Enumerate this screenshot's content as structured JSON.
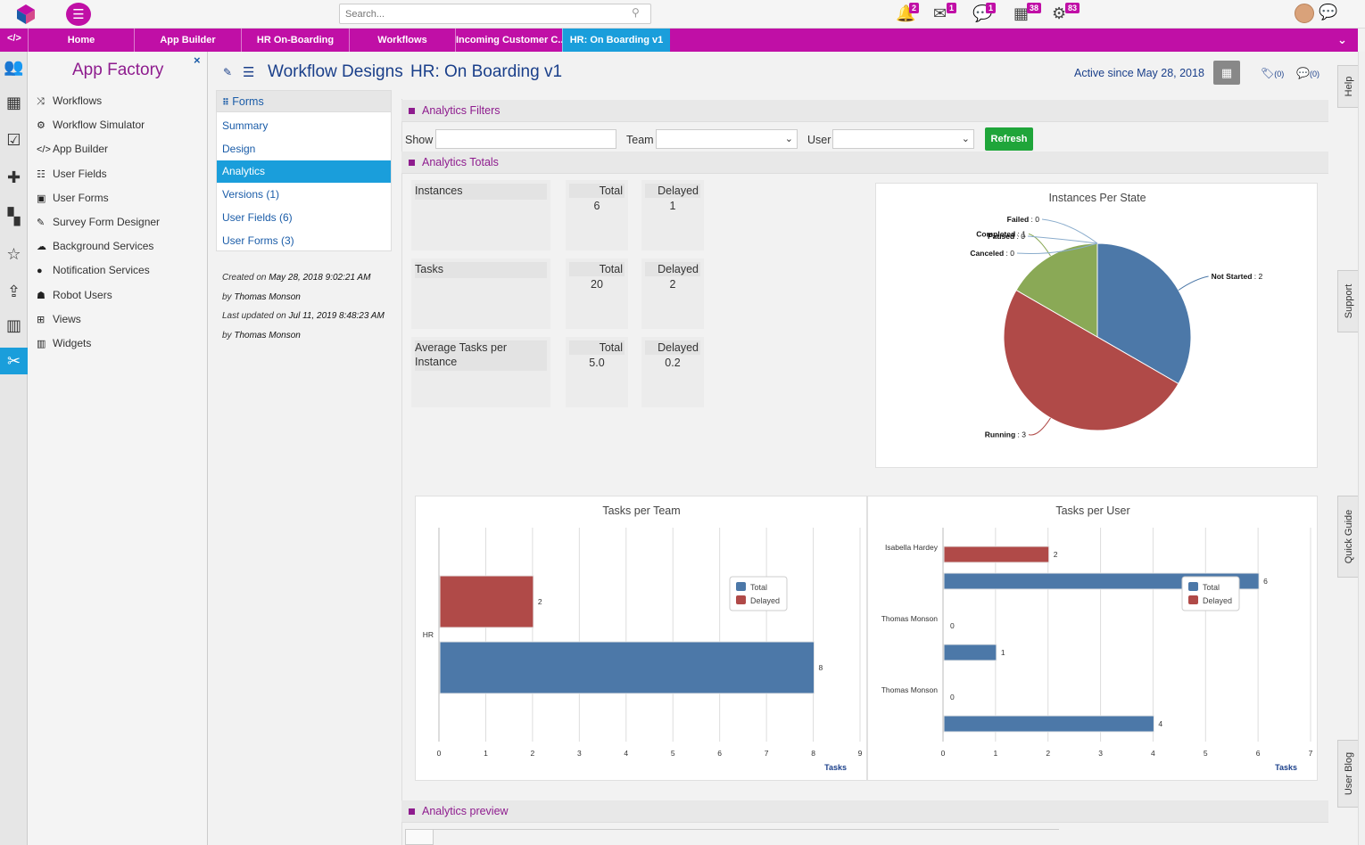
{
  "topbar": {
    "search_placeholder": "Search...",
    "notifications": [
      {
        "icon": "bell-icon",
        "glyph": "🔔",
        "count": "2"
      },
      {
        "icon": "mail-icon",
        "glyph": "✉",
        "count": "1"
      },
      {
        "icon": "chat-bubble-icon",
        "glyph": "💬",
        "count": "1"
      },
      {
        "icon": "calendar-icon",
        "glyph": "▦",
        "count": "38"
      },
      {
        "icon": "gears-icon",
        "glyph": "⚙",
        "count": "83"
      }
    ]
  },
  "tabs": [
    {
      "label": "Home"
    },
    {
      "label": "App Builder"
    },
    {
      "label": "HR On-Boarding"
    },
    {
      "label": "Workflows"
    },
    {
      "label": "Incoming Customer C..."
    },
    {
      "label": "HR: On Boarding v1"
    }
  ],
  "sidemenu": {
    "title": "App Factory",
    "close": "×",
    "items": [
      {
        "label": "Workflows",
        "glyph": "⤨"
      },
      {
        "label": "Workflow Simulator",
        "glyph": "⚙"
      },
      {
        "label": "App Builder",
        "glyph": "</>"
      },
      {
        "label": "User Fields",
        "glyph": "☷"
      },
      {
        "label": "User Forms",
        "glyph": "▣"
      },
      {
        "label": "Survey Form Designer",
        "glyph": "✎"
      },
      {
        "label": "Background Services",
        "glyph": "☁"
      },
      {
        "label": "Notification Services",
        "glyph": "●"
      },
      {
        "label": "Robot Users",
        "glyph": "☗"
      },
      {
        "label": "Views",
        "glyph": "⊞"
      },
      {
        "label": "Widgets",
        "glyph": "▥"
      }
    ]
  },
  "header": {
    "title": "Workflow Designs",
    "subtitle": "HR: On Boarding v1",
    "active_since": "Active since May 28, 2018",
    "tag_count": "(0)",
    "comment_count": "(0)"
  },
  "forms_panel": {
    "title": "Forms",
    "items": [
      "Summary",
      "Design",
      "Analytics",
      "Versions (1)",
      "User Fields (6)",
      "User Forms (3)"
    ],
    "created_prefix": "Created on",
    "created_date": "May 28, 2018 9:02:21 AM",
    "by_prefix": "by",
    "created_by": "Thomas Monson",
    "updated_prefix": "Last updated on",
    "updated_date": "Jul 11, 2019 8:48:23 AM",
    "updated_by": "Thomas Monson"
  },
  "filters": {
    "title": "Analytics Filters",
    "show_label": "Show",
    "team_label": "Team",
    "user_label": "User",
    "refresh_label": "Refresh"
  },
  "totals": {
    "title": "Analytics Totals",
    "total_header": "Total",
    "delayed_header": "Delayed",
    "rows": [
      {
        "label": "Instances",
        "total": "6",
        "delayed": "1"
      },
      {
        "label": "Tasks",
        "total": "20",
        "delayed": "2"
      },
      {
        "label": "Average Tasks per Instance",
        "total": "5.0",
        "delayed": "0.2"
      }
    ]
  },
  "preview": {
    "title": "Analytics preview"
  },
  "vtabs": [
    "Help",
    "Support",
    "Quick Guide",
    "User Blog"
  ],
  "colors": {
    "total": "#4c78a8",
    "delayed": "#b04a48",
    "completed": "#8aa956",
    "accent": "#c00fa6"
  },
  "chart_data": [
    {
      "type": "pie",
      "title": "Instances Per State",
      "slices": [
        {
          "label": "Not Started",
          "value": 2
        },
        {
          "label": "Running",
          "value": 3
        },
        {
          "label": "Completed",
          "value": 1
        },
        {
          "label": "Canceled",
          "value": 0
        },
        {
          "label": "Paused",
          "value": 0
        },
        {
          "label": "Failed",
          "value": 0
        }
      ]
    },
    {
      "type": "bar",
      "orientation": "horizontal",
      "title": "Tasks per Team",
      "xlabel": "Tasks",
      "xlim": [
        0,
        9
      ],
      "ticks": [
        0,
        1,
        2,
        3,
        4,
        5,
        6,
        7,
        8,
        9
      ],
      "categories": [
        "HR"
      ],
      "series": [
        {
          "name": "Total",
          "values": [
            8
          ]
        },
        {
          "name": "Delayed",
          "values": [
            2
          ]
        }
      ],
      "legend": "right"
    },
    {
      "type": "bar",
      "orientation": "horizontal",
      "title": "Tasks per User",
      "xlabel": "Tasks",
      "xlim": [
        0,
        7
      ],
      "ticks": [
        0,
        1,
        2,
        3,
        4,
        5,
        6,
        7
      ],
      "categories": [
        "Isabella Hardey",
        "Thomas Monson",
        "Thomas Monson"
      ],
      "series": [
        {
          "name": "Total",
          "values": [
            6,
            1,
            4
          ]
        },
        {
          "name": "Delayed",
          "values": [
            2,
            0,
            0
          ]
        }
      ],
      "legend": "top-right"
    }
  ]
}
